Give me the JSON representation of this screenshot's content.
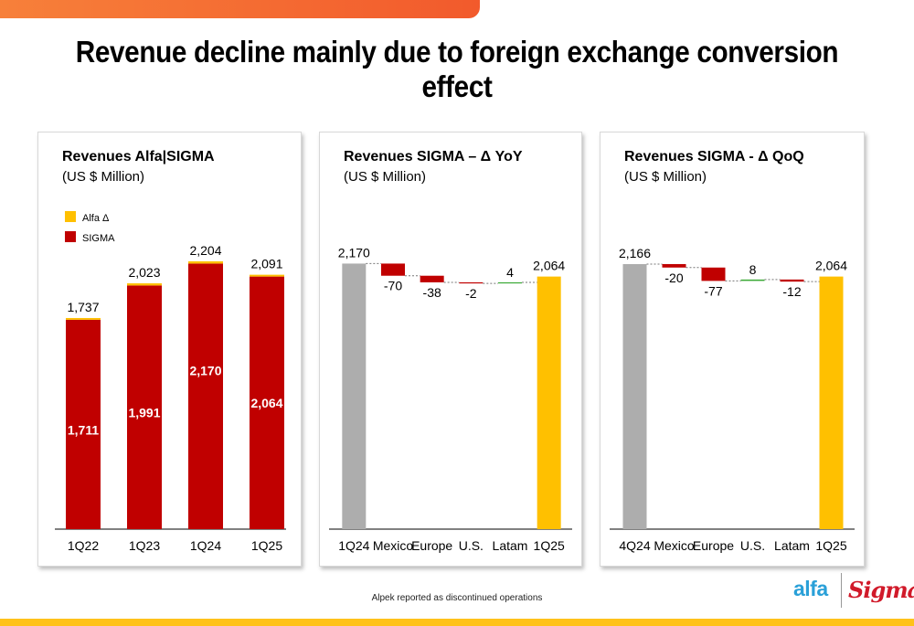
{
  "page": {
    "title": "Revenue decline mainly due to foreign exchange conversion effect",
    "footnote": "Alpek reported as discontinued operations",
    "logos": {
      "alfa": "alfa",
      "sigma": "Sigma"
    },
    "colors": {
      "sigma_red": "#c00000",
      "alfa_yellow": "#ffc000",
      "gray": "#adadad",
      "green": "#3aa935",
      "accent_orange": "#f25a2c"
    }
  },
  "chart_data": [
    {
      "type": "bar",
      "stacked": true,
      "title": "Revenues Alfa|SIGMA",
      "subtitle": "(US $ Million)",
      "categories": [
        "1Q22",
        "1Q23",
        "1Q24",
        "1Q25"
      ],
      "legend_position": "top-left",
      "series": [
        {
          "name": "Alfa Δ",
          "values": [
            26,
            32,
            34,
            27
          ],
          "color": "#ffc000"
        },
        {
          "name": "SIGMA",
          "values": [
            1711,
            1991,
            2170,
            2064
          ],
          "color": "#c00000"
        }
      ],
      "data_labels": {
        "SIGMA": [
          "1,711",
          "1,991",
          "2,170",
          "2,064"
        ],
        "total": [
          "1,737",
          "2,023",
          "2,204",
          "2,091"
        ]
      },
      "ylim": [
        0,
        2330
      ],
      "grid": false
    },
    {
      "type": "waterfall",
      "title": "Revenues SIGMA – Δ YoY",
      "subtitle": "(US $ Million)",
      "categories": [
        "1Q24",
        "Mexico",
        "Europe",
        "U.S.",
        "Latam",
        "1Q25"
      ],
      "values": [
        2170,
        -70,
        -38,
        -2,
        4,
        2064
      ],
      "kinds": [
        "total",
        "delta",
        "delta",
        "delta",
        "delta",
        "total"
      ],
      "labels": [
        "2,170",
        "-70",
        "-38",
        "-2",
        "4",
        "2,064"
      ],
      "ylim": [
        0,
        2330
      ],
      "grid": false
    },
    {
      "type": "waterfall",
      "title": "Revenues SIGMA - Δ QoQ",
      "subtitle": "(US $ Million)",
      "categories": [
        "4Q24",
        "Mexico",
        "Europe",
        "U.S.",
        "Latam",
        "1Q25"
      ],
      "values": [
        2166,
        -20,
        -77,
        8,
        -12,
        2064
      ],
      "kinds": [
        "total",
        "delta",
        "delta",
        "delta",
        "delta",
        "total"
      ],
      "labels": [
        "2,166",
        "-20",
        "-77",
        "8",
        "-12",
        "2,064"
      ],
      "ylim": [
        0,
        2330
      ],
      "grid": false
    }
  ]
}
